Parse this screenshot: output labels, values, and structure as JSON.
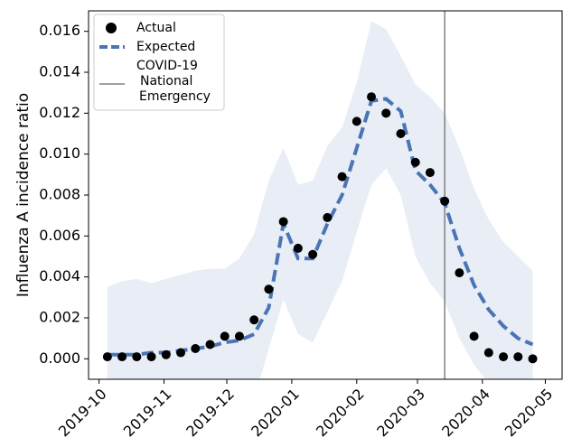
{
  "chart_data": {
    "type": "line",
    "y_label": "Influenza A incidence ratio",
    "x": [
      4,
      11,
      18,
      25,
      32,
      39,
      46,
      53,
      60,
      67,
      74,
      81,
      88,
      95,
      102,
      109,
      116,
      123,
      130,
      137,
      144,
      151,
      158,
      165,
      172,
      179,
      186,
      193,
      200,
      207
    ],
    "xlim": [
      -5,
      221
    ],
    "xticks": [
      {
        "value": 0,
        "label": "2019-10"
      },
      {
        "value": 31,
        "label": "2019-11"
      },
      {
        "value": 61,
        "label": "2019-12"
      },
      {
        "value": 92,
        "label": "2020-01"
      },
      {
        "value": 123,
        "label": "2020-02"
      },
      {
        "value": 152,
        "label": "2020-03"
      },
      {
        "value": 183,
        "label": "2020-04"
      },
      {
        "value": 213,
        "label": "2020-05"
      }
    ],
    "ylim": [
      -0.001,
      0.017
    ],
    "yticks": [
      {
        "value": 0,
        "label": "0.000"
      },
      {
        "value": 0.002,
        "label": "0.002"
      },
      {
        "value": 0.004,
        "label": "0.004"
      },
      {
        "value": 0.006,
        "label": "0.006"
      },
      {
        "value": 0.008,
        "label": "0.008"
      },
      {
        "value": 0.01,
        "label": "0.010"
      },
      {
        "value": 0.012,
        "label": "0.012"
      },
      {
        "value": 0.014,
        "label": "0.014"
      },
      {
        "value": 0.016,
        "label": "0.016"
      }
    ],
    "series": [
      {
        "name": "Actual",
        "mode": "markers",
        "color": "#000000",
        "values": [
          0.0001,
          0.0001,
          0.0001,
          0.0001,
          0.0002,
          0.0003,
          0.0005,
          0.0007,
          0.0011,
          0.0011,
          0.0019,
          0.0034,
          0.0067,
          0.0054,
          0.0051,
          0.0069,
          0.0089,
          0.0116,
          0.0128,
          0.012,
          0.011,
          0.0096,
          0.0091,
          0.0077,
          0.0042,
          0.0011,
          0.0003,
          0.0001,
          0.0001,
          0
        ]
      },
      {
        "name": "Expected",
        "mode": "dashed",
        "color": "#4a74b4",
        "values": [
          0.0002,
          0.0002,
          0.0002,
          0.0003,
          0.0003,
          0.0004,
          0.0005,
          0.0006,
          0.0008,
          0.0009,
          0.0012,
          0.0025,
          0.0066,
          0.0049,
          0.0049,
          0.0066,
          0.008,
          0.0103,
          0.0126,
          0.0127,
          0.0121,
          0.0092,
          0.0085,
          0.0076,
          0.0054,
          0.0036,
          0.0024,
          0.0016,
          0.001,
          0.0007
        ]
      }
    ],
    "band": {
      "color": "#e8edf6",
      "upper": [
        0.0035,
        0.0038,
        0.0039,
        0.0037,
        0.0039,
        0.0041,
        0.0043,
        0.0044,
        0.0044,
        0.0049,
        0.0061,
        0.0087,
        0.0103,
        0.0085,
        0.0087,
        0.0104,
        0.0113,
        0.0135,
        0.0165,
        0.0161,
        0.0148,
        0.0134,
        0.0128,
        0.012,
        0.0103,
        0.0083,
        0.0068,
        0.0057,
        0.005,
        0.0043
      ],
      "lower": [
        -0.003,
        -0.003,
        -0.003,
        -0.003,
        -0.003,
        -0.003,
        -0.003,
        -0.003,
        -0.003,
        -0.003,
        -0.002,
        0.0005,
        0.0029,
        0.0012,
        0.0008,
        0.0023,
        0.0038,
        0.0062,
        0.0085,
        0.0093,
        0.008,
        0.005,
        0.0037,
        0.0028,
        0.001,
        -0.0003,
        -0.0012,
        -0.002,
        -0.003,
        -0.003
      ]
    },
    "vline": {
      "name": "COVID-19 National Emergency",
      "x": 165,
      "color": "#808080"
    }
  }
}
